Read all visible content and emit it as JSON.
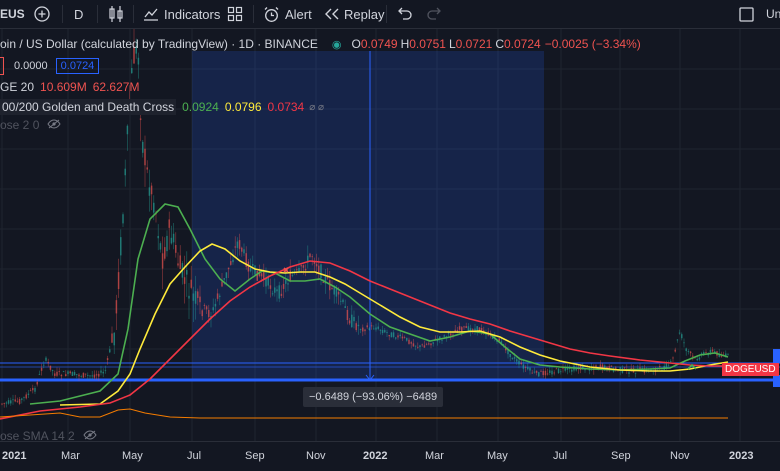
{
  "toolbar": {
    "symbol": "EUS",
    "interval": "D",
    "indicators_label": "Indicators",
    "alert_label": "Alert",
    "replay_label": "Replay",
    "undo_label": "Un"
  },
  "legend": {
    "title": "oin / US Dollar (calculated by TradingView) · 1D · BINANCE",
    "ohlc": {
      "o_label": "O",
      "o": "0.0749",
      "h_label": "H",
      "h": "0.0751",
      "l_label": "L",
      "l": "0.0721",
      "c_label": "C",
      "c": "0.0724",
      "change": "−0.0025 (−3.34%)"
    },
    "value_box1": "0.0000",
    "value_box2": "0.0724",
    "volume": {
      "label": "GE 20",
      "v1": "10.609M",
      "v2": "62.627M"
    },
    "cross": {
      "label": "00/200 Golden and Death Cross",
      "v1": "0.0924",
      "v2": "0.0796",
      "v3": "0.0734",
      "icons": "⌀ ⌀"
    },
    "close": "ose 2 0",
    "sma": "ose SMA 14 2"
  },
  "measure_label": "−0.6489 (−93.06%) −6489",
  "price_tag": "DOGEUSD",
  "time_axis": {
    "labels": [
      {
        "text": "2021",
        "year": true
      },
      {
        "text": "Mar",
        "year": false
      },
      {
        "text": "May",
        "year": false
      },
      {
        "text": "Jul",
        "year": false
      },
      {
        "text": "Sep",
        "year": false
      },
      {
        "text": "Nov",
        "year": false
      },
      {
        "text": "2022",
        "year": true
      },
      {
        "text": "Mar",
        "year": false
      },
      {
        "text": "May",
        "year": false
      },
      {
        "text": "Jul",
        "year": false
      },
      {
        "text": "Sep",
        "year": false
      },
      {
        "text": "Nov",
        "year": false
      },
      {
        "text": "2023",
        "year": true
      }
    ]
  },
  "colors": {
    "bg": "#131722",
    "up": "#26a69a",
    "down": "#ef5350",
    "ma_green": "#4caf50",
    "ma_yellow": "#ffeb3b",
    "ma_red": "#f23645",
    "blue": "#2962ff"
  }
}
